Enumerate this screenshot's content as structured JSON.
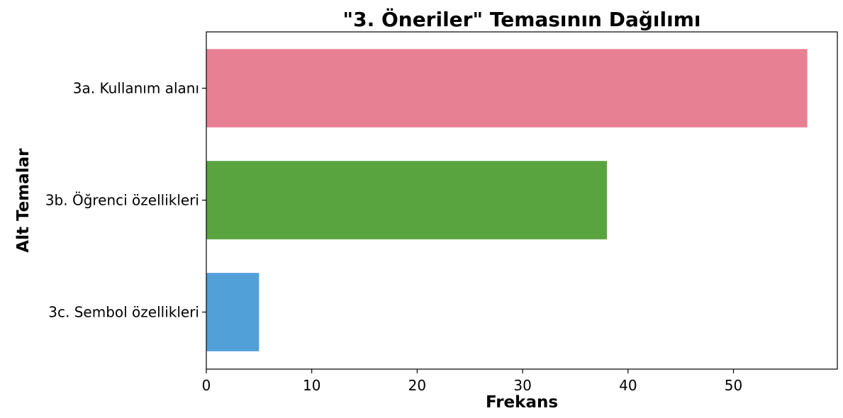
{
  "chart_data": {
    "type": "bar",
    "orientation": "horizontal",
    "title": "\"3. Öneriler\" Temasının Dağılımı",
    "xlabel": "Frekans",
    "ylabel": "Alt Temalar",
    "categories": [
      "3a. Kullanım alanı",
      "3b. Öğrenci özellikleri",
      "3c. Sembol özellikleri"
    ],
    "values": [
      57,
      38,
      5
    ],
    "colors": [
      "#e88093",
      "#5aa440",
      "#52a0d8"
    ],
    "xlim": [
      0,
      59.85
    ],
    "xticks": [
      0,
      10,
      20,
      30,
      40,
      50
    ],
    "grid": false,
    "legend": "none"
  }
}
